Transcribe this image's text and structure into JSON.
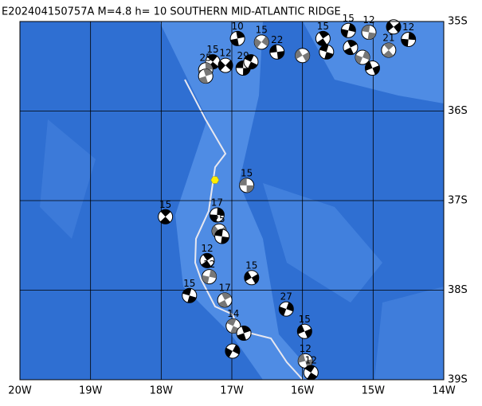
{
  "chart_data": {
    "type": "map",
    "title": "E202404150757A M=4.8 h= 10 SOUTHERN MID-ATLANTIC RIDGE",
    "xlim": [
      -20,
      -14
    ],
    "ylim": [
      -39,
      -35
    ],
    "xticks": [
      {
        "value": -20,
        "label": "20W"
      },
      {
        "value": -19,
        "label": "19W"
      },
      {
        "value": -18,
        "label": "18W"
      },
      {
        "value": -17,
        "label": "17W"
      },
      {
        "value": -16,
        "label": "16W"
      },
      {
        "value": -15,
        "label": "15W"
      },
      {
        "value": -14,
        "label": "14W"
      }
    ],
    "yticks": [
      {
        "value": -35,
        "label": "35S"
      },
      {
        "value": -36,
        "label": "36S"
      },
      {
        "value": -37,
        "label": "37S"
      },
      {
        "value": -38,
        "label": "38S"
      },
      {
        "value": -39,
        "label": "39S"
      }
    ],
    "grid": true,
    "main_event": {
      "lon": -17.24,
      "lat": -36.77,
      "color": "#ffee00"
    },
    "events": [
      {
        "lon": -16.79,
        "lat": -36.83,
        "depth": 15
      },
      {
        "lon": -17.94,
        "lat": -37.18,
        "depth": 15
      },
      {
        "lon": -17.21,
        "lat": -37.16,
        "depth": 17
      },
      {
        "lon": -17.18,
        "lat": -37.34,
        "depth": 25
      },
      {
        "lon": -17.14,
        "lat": -37.4,
        "depth": null
      },
      {
        "lon": -17.35,
        "lat": -37.67,
        "depth": 12
      },
      {
        "lon": -17.32,
        "lat": -37.85,
        "depth": 12
      },
      {
        "lon": -16.72,
        "lat": -37.86,
        "depth": 15
      },
      {
        "lon": -17.6,
        "lat": -38.06,
        "depth": 15
      },
      {
        "lon": -17.1,
        "lat": -38.11,
        "depth": 17
      },
      {
        "lon": -16.23,
        "lat": -38.21,
        "depth": 27
      },
      {
        "lon": -15.97,
        "lat": -38.46,
        "depth": 15
      },
      {
        "lon": -16.98,
        "lat": -38.4,
        "depth": 14
      },
      {
        "lon": -16.83,
        "lat": -38.48,
        "depth": null
      },
      {
        "lon": -16.99,
        "lat": -38.68,
        "depth": null
      },
      {
        "lon": -15.96,
        "lat": -38.79,
        "depth": 12
      },
      {
        "lon": -15.88,
        "lat": -38.92,
        "depth": 12
      },
      {
        "lon": -16.92,
        "lat": -35.19,
        "depth": 10
      },
      {
        "lon": -16.58,
        "lat": -35.23,
        "depth": 15
      },
      {
        "lon": -16.36,
        "lat": -35.34,
        "depth": 22
      },
      {
        "lon": -17.27,
        "lat": -35.45,
        "depth": 15
      },
      {
        "lon": -17.37,
        "lat": -35.54,
        "depth": 25
      },
      {
        "lon": -17.09,
        "lat": -35.49,
        "depth": 12
      },
      {
        "lon": -16.84,
        "lat": -35.52,
        "depth": 29
      },
      {
        "lon": -14.78,
        "lat": -35.32,
        "depth": 21
      },
      {
        "lon": -14.5,
        "lat": -35.2,
        "depth": 12
      },
      {
        "lon": -14.71,
        "lat": -35.06,
        "depth": null
      },
      {
        "lon": -15.06,
        "lat": -35.12,
        "depth": 12
      },
      {
        "lon": -15.71,
        "lat": -35.19,
        "depth": 15
      },
      {
        "lon": -15.35,
        "lat": -35.1,
        "depth": 15
      },
      {
        "lon": -16.0,
        "lat": -35.38,
        "depth": null
      },
      {
        "lon": -15.66,
        "lat": -35.34,
        "depth": null
      },
      {
        "lon": -15.32,
        "lat": -35.29,
        "depth": null
      },
      {
        "lon": -15.15,
        "lat": -35.4,
        "depth": null
      },
      {
        "lon": -15.01,
        "lat": -35.52,
        "depth": null
      },
      {
        "lon": -16.73,
        "lat": -35.45,
        "depth": null
      },
      {
        "lon": -17.37,
        "lat": -35.61,
        "depth": null
      }
    ]
  }
}
